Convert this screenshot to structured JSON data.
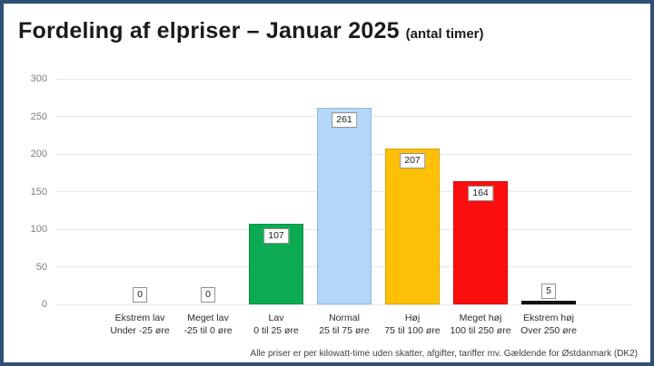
{
  "frame": {
    "border_color": "#2f4f75",
    "background": "#ffffff"
  },
  "header": {
    "title": "Fordeling af elpriser – Januar 2025",
    "subtitle": "(antal timer)"
  },
  "footer": {
    "note": "Alle priser er per kilowatt-time uden skatter, afgifter, tariffer mv. Gældende for Østdanmark (DK2)"
  },
  "chart_data": {
    "type": "bar",
    "title": "Fordeling af elpriser – Januar 2025 (antal timer)",
    "categories": [
      "Ekstrem lav",
      "Meget lav",
      "Lav",
      "Normal",
      "Høj",
      "Meget høj",
      "Ekstrem høj"
    ],
    "category_sublabels": [
      "Under -25 øre",
      "-25 til 0 øre",
      "0 til 25 øre",
      "25 til 75 øre",
      "75 til 100 øre",
      "100 til 250 øre",
      "Over 250 øre"
    ],
    "values": [
      0,
      0,
      107,
      261,
      207,
      164,
      5
    ],
    "bar_colors": [
      null,
      null,
      "#0cab53",
      "#b5d7f8",
      "#fec007",
      "#fb0e0e",
      "#141414"
    ],
    "bar_border_colors": [
      null,
      null,
      "#089043",
      "#8fb7dc",
      "#d9a303",
      "#d60b0b",
      "#000000"
    ],
    "value_label_boxes": true,
    "xlabel": "",
    "ylabel": "",
    "ylim": [
      0,
      300
    ],
    "yticks": [
      0,
      50,
      100,
      150,
      200,
      250,
      300
    ],
    "grid": true,
    "legend": false
  }
}
